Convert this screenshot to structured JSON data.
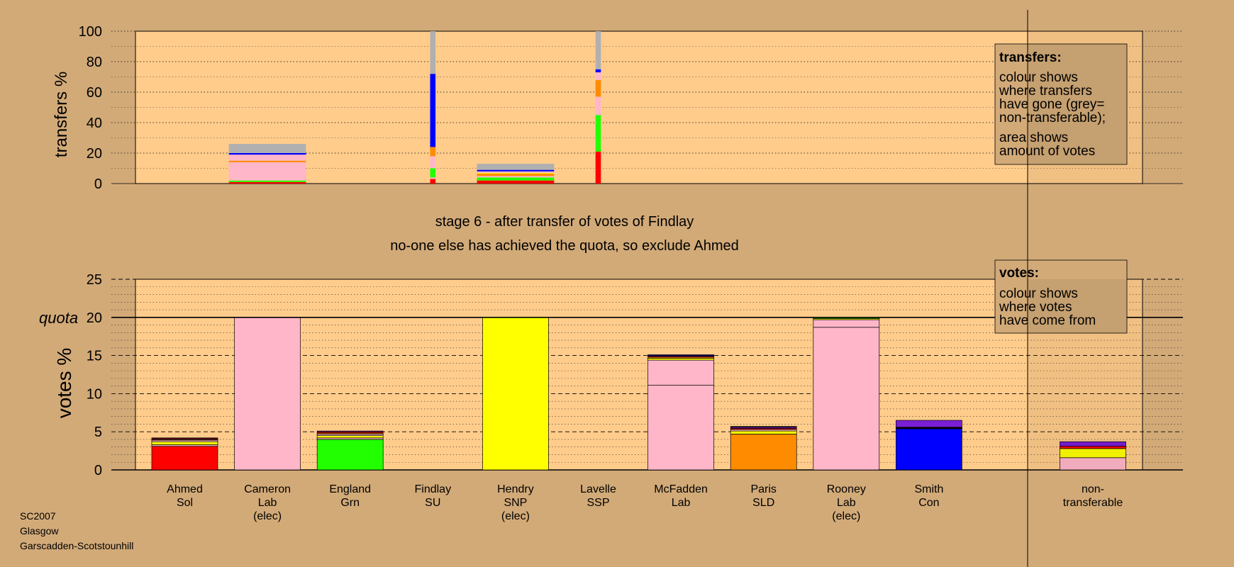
{
  "chart_data": [
    {
      "type": "bar",
      "name": "transfers",
      "ylabel": "transfers %",
      "ylim": [
        0,
        100
      ],
      "yticks": [
        0,
        20,
        40,
        60,
        80,
        100
      ],
      "grid": true,
      "stacked": true,
      "legend": {
        "position": "top-right",
        "title": "transfers:",
        "lines": [
          "colour shows",
          "where transfers",
          "have gone (grey=",
          "non-transferable);"
        ],
        "lines2": [
          "area shows",
          "amount of votes"
        ]
      },
      "bars": [
        {
          "category": "Cameron",
          "width_share": 1.0,
          "segments": [
            {
              "color": "#ff0000",
              "value": 1.0
            },
            {
              "color": "#22ff00",
              "value": 1.0
            },
            {
              "color": "#ffb6c8",
              "value": 12.0
            },
            {
              "color": "#ff8c00",
              "value": 1.0
            },
            {
              "color": "#ffb6c8",
              "value": 4.0
            },
            {
              "color": "#0000ff",
              "value": 1.0
            },
            {
              "color": "#b0b0b0",
              "value": 6.0
            }
          ]
        },
        {
          "category": "Findlay",
          "width_share": 0.07,
          "segments": [
            {
              "color": "#ff0000",
              "value": 3.0
            },
            {
              "color": "#ffb6c8",
              "value": 1.0
            },
            {
              "color": "#22ff00",
              "value": 6.0
            },
            {
              "color": "#ffb6c8",
              "value": 8.0
            },
            {
              "color": "#ff8c00",
              "value": 6.0
            },
            {
              "color": "#0000ff",
              "value": 48.0
            },
            {
              "color": "#b0b0b0",
              "value": 28.0
            }
          ]
        },
        {
          "category": "Hendry",
          "width_share": 1.0,
          "segments": [
            {
              "color": "#ff0000",
              "value": 2.0
            },
            {
              "color": "#22ff00",
              "value": 2.0
            },
            {
              "color": "#ffb6c8",
              "value": 1.0
            },
            {
              "color": "#ff8c00",
              "value": 1.5
            },
            {
              "color": "#ffff00",
              "value": 0.5
            },
            {
              "color": "#ffb6c8",
              "value": 1.0
            },
            {
              "color": "#0000ff",
              "value": 1.0
            },
            {
              "color": "#b0b0b0",
              "value": 4.0
            }
          ]
        },
        {
          "category": "Lavelle",
          "width_share": 0.07,
          "segments": [
            {
              "color": "#ff0000",
              "value": 21.0
            },
            {
              "color": "#22ff00",
              "value": 24.0
            },
            {
              "color": "#ffb6c8",
              "value": 12.0
            },
            {
              "color": "#ff8c00",
              "value": 11.0
            },
            {
              "color": "#ffb6c8",
              "value": 5.0
            },
            {
              "color": "#0000ff",
              "value": 2.0
            },
            {
              "color": "#b0b0b0",
              "value": 25.0
            }
          ]
        }
      ]
    },
    {
      "type": "bar",
      "name": "votes",
      "ylabel": "votes %",
      "ylim": [
        0,
        25
      ],
      "yticks": [
        0,
        5,
        10,
        15,
        20,
        25
      ],
      "quota": 20,
      "quota_label": "quota",
      "grid": true,
      "stacked": true,
      "legend": {
        "position": "top-right",
        "title": "votes:",
        "lines": [
          "colour shows",
          "where votes",
          "have come from"
        ]
      },
      "categories": [
        {
          "lines": [
            "Ahmed",
            "Sol"
          ]
        },
        {
          "lines": [
            "Cameron",
            "Lab",
            "(elec)"
          ]
        },
        {
          "lines": [
            "England",
            "Grn"
          ]
        },
        {
          "lines": [
            "Findlay",
            "SU"
          ]
        },
        {
          "lines": [
            "Hendry",
            "SNP",
            "(elec)"
          ]
        },
        {
          "lines": [
            "Lavelle",
            "SSP"
          ]
        },
        {
          "lines": [
            "McFadden",
            "Lab"
          ]
        },
        {
          "lines": [
            "Paris",
            "SLD"
          ]
        },
        {
          "lines": [
            "Rooney",
            "Lab",
            "(elec)"
          ]
        },
        {
          "lines": [
            "Smith",
            "Con"
          ]
        },
        {
          "lines": [
            "non-",
            "transferable"
          ]
        }
      ],
      "bars": [
        {
          "segments": [
            {
              "color": "#ff0000",
              "value": 3.1
            },
            {
              "color": "#ffb6c8",
              "value": 0.2
            },
            {
              "color": "#ffff00",
              "value": 0.4
            },
            {
              "color": "#ffb6c8",
              "value": 0.2
            },
            {
              "color": "#ff8c00",
              "value": 0.1
            },
            {
              "color": "#7b1fd6",
              "value": 0.1
            },
            {
              "color": "#ff0000",
              "value": 0.1
            }
          ]
        },
        {
          "segments": [
            {
              "color": "#ffb6c8",
              "value": 20.0
            }
          ]
        },
        {
          "segments": [
            {
              "color": "#22ff00",
              "value": 4.0
            },
            {
              "color": "#ffb6c8",
              "value": 0.2
            },
            {
              "color": "#ffff00",
              "value": 0.3
            },
            {
              "color": "#ffb6c8",
              "value": 0.2
            },
            {
              "color": "#ff8c00",
              "value": 0.15
            },
            {
              "color": "#ff0000",
              "value": 0.15
            },
            {
              "color": "#7b1fd6",
              "value": 0.1
            }
          ]
        },
        {
          "segments": []
        },
        {
          "segments": [
            {
              "color": "#ffff00",
              "value": 20.0
            }
          ]
        },
        {
          "segments": []
        },
        {
          "segments": [
            {
              "color": "#ffb6c8",
              "value": 11.1
            },
            {
              "color": "#ffb6c8",
              "value": 3.3
            },
            {
              "color": "#ffff00",
              "value": 0.25
            },
            {
              "color": "#ff8c00",
              "value": 0.15
            },
            {
              "color": "#ff0000",
              "value": 0.1
            },
            {
              "color": "#7b1fd6",
              "value": 0.1
            },
            {
              "color": "#0000ff",
              "value": 0.1
            }
          ]
        },
        {
          "segments": [
            {
              "color": "#ff8c00",
              "value": 4.7
            },
            {
              "color": "#ffff00",
              "value": 0.4
            },
            {
              "color": "#ffb6c8",
              "value": 0.2
            },
            {
              "color": "#ff0000",
              "value": 0.15
            },
            {
              "color": "#7b1fd6",
              "value": 0.15
            },
            {
              "color": "#000000",
              "value": 0.1
            }
          ]
        },
        {
          "segments": [
            {
              "color": "#ffb6c8",
              "value": 18.7
            },
            {
              "color": "#ffb6c8",
              "value": 1.0
            },
            {
              "color": "#ffff00",
              "value": 0.15
            },
            {
              "color": "#22ff00",
              "value": 0.15
            }
          ]
        },
        {
          "segments": [
            {
              "color": "#0000ff",
              "value": 5.4
            },
            {
              "color": "#000000",
              "value": 0.2
            },
            {
              "color": "#7b1fd6",
              "value": 0.9
            }
          ]
        },
        {
          "segments": [
            {
              "color": "#ffb6c8",
              "value": 1.6
            },
            {
              "color": "#ffff00",
              "value": 1.2
            },
            {
              "color": "#ff0000",
              "value": 0.3
            },
            {
              "color": "#7b1fd6",
              "value": 0.6
            }
          ]
        }
      ]
    }
  ],
  "stage_title": "stage 6 - after transfer of votes of Findlay",
  "stage_subtitle": "no-one else has achieved the quota, so exclude Ahmed",
  "footer": {
    "line1": "SC2007",
    "line2": "Glasgow",
    "line3": "Garscadden-Scotstounhill"
  },
  "colors": {
    "background": "#d2aa78",
    "plot_bg": "#ffcc8c",
    "grey": "#b0b0b0"
  }
}
